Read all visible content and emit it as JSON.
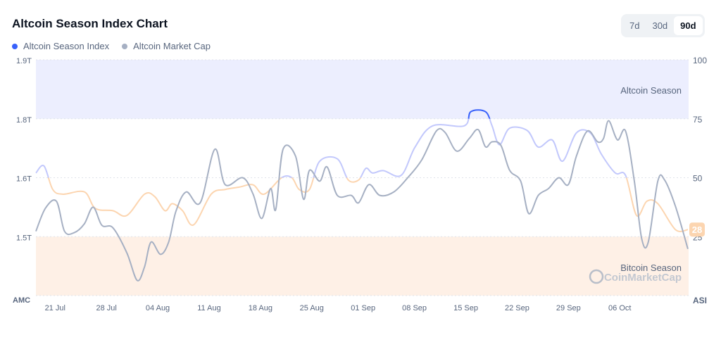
{
  "header": {
    "title": "Altcoin Season Index Chart"
  },
  "tabs": [
    {
      "label": "7d"
    },
    {
      "label": "30d"
    },
    {
      "label": "90d",
      "active": true
    }
  ],
  "colors": {
    "asi": "#3861fb",
    "amc": "#a6b0c3",
    "altRegion": "#eceefe",
    "btcRegion": "#fef0e6",
    "asiMid": "#c2c8fc",
    "asiLow": "#fcd5b0"
  },
  "chart_data": {
    "type": "line",
    "title": "Altcoin Season Index Chart",
    "legend": [
      "Altcoin Season Index",
      "Altcoin Market Cap"
    ],
    "legend_position": "top-left",
    "x_unit": "days since 18 Jul",
    "xlim": [
      0,
      89
    ],
    "x_ticks": [
      {
        "day": 3,
        "label": "21 Jul"
      },
      {
        "day": 10,
        "label": "28 Jul"
      },
      {
        "day": 17,
        "label": "04 Aug"
      },
      {
        "day": 24,
        "label": "11 Aug"
      },
      {
        "day": 31,
        "label": "18 Aug"
      },
      {
        "day": 38,
        "label": "25 Aug"
      },
      {
        "day": 45,
        "label": "01 Sep"
      },
      {
        "day": 52,
        "label": "08 Sep"
      },
      {
        "day": 59,
        "label": "15 Sep"
      },
      {
        "day": 66,
        "label": "22 Sep"
      },
      {
        "day": 73,
        "label": "29 Sep"
      },
      {
        "day": 80,
        "label": "06 Oct"
      }
    ],
    "left_axis": {
      "label": "AMC",
      "ticks": [
        "1.9T",
        "1.8T",
        "1.6T",
        "1.5T"
      ],
      "ylim": [
        1.42,
        1.9
      ]
    },
    "right_axis": {
      "label": "ASI",
      "ticks": [
        "100",
        "75",
        "50",
        "25"
      ],
      "ylim": [
        0,
        100
      ]
    },
    "regions": [
      {
        "label": "Altcoin Season",
        "from": 75,
        "to": 100
      },
      {
        "label": "Bitcoin Season",
        "from": 0,
        "to": 25
      }
    ],
    "current_value": "28",
    "watermark": "CoinMarketCap",
    "series": [
      {
        "name": "Altcoin Season Index",
        "axis": "right",
        "x": [
          0,
          1.1,
          2.3,
          3.7,
          6.6,
          8.1,
          10.5,
          12.4,
          14.8,
          16.2,
          17.6,
          18.6,
          20,
          21.5,
          23.9,
          25.8,
          27.7,
          29.6,
          31.1,
          33.5,
          34.9,
          35.9,
          37.3,
          38.7,
          41.1,
          42.6,
          44,
          45,
          45.9,
          47.4,
          49.8,
          51.7,
          54.1,
          58.4,
          59.3,
          61.3,
          62.2,
          63.2,
          64.6,
          67,
          68.5,
          70.4,
          71.8,
          73.7,
          75.6,
          77.1,
          79,
          80.4,
          81.9,
          83.3,
          84.8,
          87.2,
          88.9
        ],
        "values": [
          52,
          55,
          45,
          43,
          44,
          37,
          36,
          34,
          43,
          42,
          36,
          39,
          36,
          30,
          43,
          45,
          46,
          47,
          43,
          50,
          50,
          45,
          45,
          57,
          58,
          49,
          49,
          54,
          52,
          53,
          51,
          63,
          72,
          72,
          78,
          78,
          72,
          64,
          71,
          70,
          63,
          66,
          57,
          69,
          69,
          60,
          52,
          51,
          34,
          40,
          39,
          28,
          28
        ]
      },
      {
        "name": "Altcoin Market Cap",
        "axis": "left",
        "x": [
          0,
          1.3,
          2.8,
          3.9,
          5.2,
          6.6,
          7.8,
          9,
          10.5,
          12.4,
          13.8,
          14.8,
          15.7,
          17,
          18.1,
          19.1,
          20.5,
          22.4,
          24.4,
          25.8,
          28.2,
          29.6,
          30.8,
          32,
          32.7,
          33.7,
          35.4,
          36.5,
          37.3,
          38.7,
          39.7,
          41.1,
          43,
          44,
          45.4,
          46.9,
          48.8,
          50.7,
          52.6,
          54.6,
          55.8,
          57.4,
          59.1,
          60.3,
          61.3,
          62.2,
          63.4,
          64.6,
          66.1,
          67.2,
          68.5,
          69.9,
          71.3,
          72.6,
          73.7,
          75.2,
          76.6,
          77.4,
          78.1,
          79.3,
          80.4,
          81.6,
          82.6,
          83.5,
          84.8,
          85.7,
          87.2,
          88.9
        ],
        "values": [
          1.551,
          1.598,
          1.612,
          1.551,
          1.548,
          1.566,
          1.6,
          1.563,
          1.558,
          1.507,
          1.451,
          1.478,
          1.529,
          1.504,
          1.529,
          1.592,
          1.631,
          1.609,
          1.718,
          1.646,
          1.66,
          1.627,
          1.577,
          1.638,
          1.595,
          1.718,
          1.704,
          1.616,
          1.675,
          1.653,
          1.682,
          1.624,
          1.624,
          1.609,
          1.646,
          1.624,
          1.631,
          1.66,
          1.696,
          1.755,
          1.752,
          1.714,
          1.74,
          1.758,
          1.723,
          1.733,
          1.726,
          1.675,
          1.653,
          1.587,
          1.624,
          1.638,
          1.66,
          1.646,
          1.704,
          1.755,
          1.733,
          1.74,
          1.776,
          1.737,
          1.755,
          1.653,
          1.536,
          1.529,
          1.653,
          1.656,
          1.602,
          1.515
        ]
      }
    ]
  }
}
